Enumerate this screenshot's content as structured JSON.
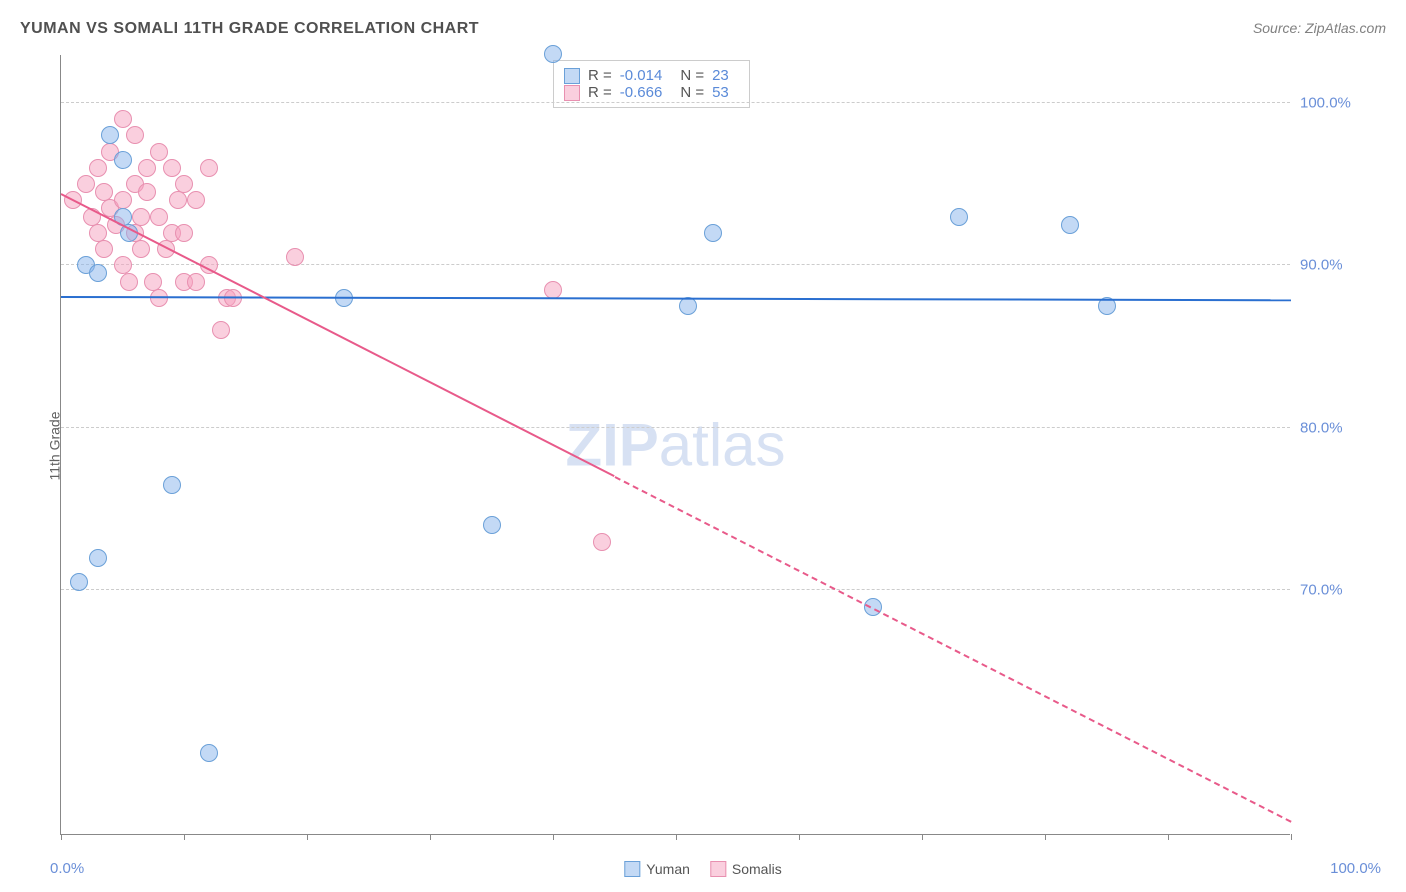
{
  "title": "YUMAN VS SOMALI 11TH GRADE CORRELATION CHART",
  "source": "Source: ZipAtlas.com",
  "y_axis_label": "11th Grade",
  "watermark": {
    "zip": "ZIP",
    "atlas": "atlas"
  },
  "chart": {
    "type": "scatter",
    "xlim": [
      0,
      100
    ],
    "ylim": [
      55,
      103
    ],
    "x_min_label": "0.0%",
    "x_max_label": "100.0%",
    "x_ticks": [
      0,
      10,
      20,
      30,
      40,
      50,
      60,
      70,
      80,
      90,
      100
    ],
    "y_gridlines": [
      {
        "value": 70,
        "label": "70.0%"
      },
      {
        "value": 80,
        "label": "80.0%"
      },
      {
        "value": 90,
        "label": "90.0%"
      },
      {
        "value": 100,
        "label": "100.0%"
      }
    ],
    "background_color": "#ffffff",
    "grid_color": "#cccccc"
  },
  "series": {
    "yuman": {
      "label": "Yuman",
      "fill_color": "rgba(135,180,235,0.5)",
      "stroke_color": "#6aa0d8",
      "marker_size": 18,
      "R": "-0.014",
      "N": "23",
      "trend": {
        "x1": 0,
        "y1": 88.0,
        "x2": 100,
        "y2": 87.8,
        "color": "#2a6fd0",
        "width": 2
      },
      "points": [
        [
          2,
          90
        ],
        [
          3,
          89.5
        ],
        [
          4,
          98
        ],
        [
          5,
          96.5
        ],
        [
          5.5,
          92
        ],
        [
          5,
          93
        ],
        [
          9,
          76.5
        ],
        [
          12,
          60
        ],
        [
          3,
          72
        ],
        [
          1.5,
          70.5
        ],
        [
          23,
          88
        ],
        [
          35,
          74
        ],
        [
          51,
          87.5
        ],
        [
          53,
          92
        ],
        [
          40,
          103
        ],
        [
          66,
          69
        ],
        [
          73,
          93
        ],
        [
          82,
          92.5
        ],
        [
          85,
          87.5
        ]
      ]
    },
    "somalis": {
      "label": "Somalis",
      "fill_color": "rgba(245,160,190,0.5)",
      "stroke_color": "#e890b0",
      "marker_size": 18,
      "R": "-0.666",
      "N": "53",
      "trend": {
        "x1": 0,
        "y1": 94.3,
        "x2": 100,
        "y2": 55.7,
        "color": "#e85a8a",
        "width": 2,
        "dash_from_x": 45
      },
      "points": [
        [
          1,
          94
        ],
        [
          2,
          95
        ],
        [
          2.5,
          93
        ],
        [
          3,
          96
        ],
        [
          3,
          92
        ],
        [
          3.5,
          91
        ],
        [
          3.5,
          94.5
        ],
        [
          4,
          97
        ],
        [
          4,
          93.5
        ],
        [
          4.5,
          92.5
        ],
        [
          5,
          99
        ],
        [
          5,
          94
        ],
        [
          5,
          90
        ],
        [
          5.5,
          89
        ],
        [
          6,
          98
        ],
        [
          6,
          95
        ],
        [
          6,
          92
        ],
        [
          6.5,
          91
        ],
        [
          6.5,
          93
        ],
        [
          7,
          96
        ],
        [
          7,
          94.5
        ],
        [
          7.5,
          89
        ],
        [
          8,
          97
        ],
        [
          8,
          93
        ],
        [
          8.5,
          91
        ],
        [
          9,
          92
        ],
        [
          9,
          96
        ],
        [
          9.5,
          94
        ],
        [
          10,
          92
        ],
        [
          10,
          89
        ],
        [
          10,
          95
        ],
        [
          11,
          89
        ],
        [
          11,
          94
        ],
        [
          12,
          96
        ],
        [
          12,
          90
        ],
        [
          13,
          86
        ],
        [
          13.5,
          88
        ],
        [
          14,
          88
        ],
        [
          8,
          88
        ],
        [
          19,
          90.5
        ],
        [
          40,
          88.5
        ],
        [
          44,
          73
        ]
      ]
    }
  },
  "stat_box": {
    "r_label": "R =",
    "n_label": "N ="
  }
}
